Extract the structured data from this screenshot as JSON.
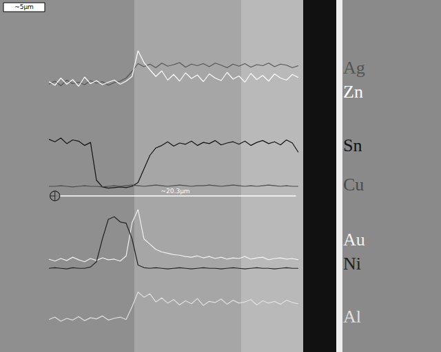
{
  "chart_data": {
    "type": "line",
    "annotations": {
      "scale_bar": "~5µm",
      "measurement": {
        "label": "~20.3µm",
        "length": 20.3
      }
    },
    "x": [
      -0.5,
      0,
      0.5,
      1,
      1.5,
      2,
      2.5,
      3,
      3.5,
      4,
      4.5,
      5,
      5.5,
      6,
      6.5,
      7,
      7.5,
      8,
      8.5,
      9,
      9.5,
      10,
      10.5,
      11,
      11.5,
      12,
      12.5,
      13,
      13.5,
      14,
      14.5,
      15,
      15.5,
      16,
      16.5,
      17,
      17.5,
      18,
      18.5,
      19,
      19.5,
      20,
      20.5
    ],
    "xlim": [
      -1.2,
      21.2
    ],
    "ylim": [
      0,
      10
    ],
    "tick_labels": false,
    "grid": false,
    "series": [
      {
        "name": "Ag",
        "color": "#555555",
        "values": [
          3.0,
          3.6,
          2.7,
          3.8,
          3.1,
          3.4,
          2.9,
          3.7,
          3.2,
          3.5,
          2.8,
          3.3,
          3.6,
          4.2,
          5.5,
          7.0,
          6.4,
          6.9,
          6.2,
          7.1,
          6.5,
          6.8,
          7.2,
          6.3,
          6.9,
          6.6,
          7.0,
          6.4,
          7.1,
          6.7,
          6.2,
          6.9,
          6.5,
          7.0,
          6.3,
          6.8,
          6.6,
          7.1,
          6.4,
          6.9,
          6.7,
          6.2,
          6.6
        ]
      },
      {
        "name": "Zn",
        "color": "#ffffff",
        "values": [
          3.5,
          2.8,
          4.2,
          3.0,
          3.9,
          2.6,
          4.4,
          3.1,
          3.7,
          2.9,
          3.4,
          3.8,
          3.0,
          3.6,
          4.5,
          9.5,
          7.2,
          5.8,
          4.5,
          5.6,
          3.8,
          4.9,
          3.6,
          5.2,
          4.1,
          4.8,
          3.5,
          5.0,
          4.2,
          3.7,
          5.3,
          4.0,
          4.6,
          3.4,
          5.1,
          3.9,
          4.7,
          3.6,
          5.0,
          4.2,
          3.8,
          4.9,
          4.3
        ]
      },
      {
        "name": "Sn",
        "color": "#111111",
        "values": [
          8.6,
          8.2,
          8.8,
          7.9,
          8.5,
          8.3,
          7.6,
          8.1,
          2.0,
          0.9,
          0.7,
          0.8,
          0.9,
          0.8,
          1.0,
          1.6,
          3.8,
          6.0,
          7.2,
          7.6,
          8.2,
          7.5,
          8.0,
          7.8,
          8.3,
          7.6,
          8.1,
          7.9,
          8.4,
          7.7,
          8.0,
          8.2,
          7.8,
          8.3,
          7.6,
          8.1,
          8.4,
          7.9,
          8.2,
          7.7,
          8.5,
          8.0,
          6.5
        ]
      },
      {
        "name": "Cu",
        "color": "#4a4a4a",
        "values": [
          1.0,
          1.0,
          1.1,
          1.0,
          0.9,
          1.0,
          1.1,
          1.0,
          1.0,
          0.9,
          1.0,
          1.1,
          1.0,
          1.1,
          1.2,
          1.1,
          1.0,
          1.1,
          1.2,
          1.1,
          1.0,
          1.1,
          1.2,
          1.1,
          1.0,
          1.1,
          1.1,
          1.2,
          1.1,
          1.0,
          1.1,
          1.2,
          1.1,
          1.0,
          1.1,
          1.0,
          1.1,
          1.2,
          1.1,
          1.0,
          1.1,
          1.0,
          1.0
        ]
      },
      {
        "name": "Au",
        "color": "#f2f2f2",
        "values": [
          1.9,
          1.6,
          2.0,
          1.7,
          2.2,
          1.8,
          1.5,
          2.0,
          1.7,
          2.1,
          1.8,
          1.9,
          1.6,
          2.4,
          7.5,
          9.5,
          5.0,
          4.2,
          3.4,
          3.0,
          2.8,
          2.6,
          2.5,
          2.3,
          2.2,
          2.4,
          2.1,
          2.3,
          2.0,
          2.2,
          1.9,
          2.1,
          2.0,
          2.3,
          1.9,
          2.1,
          2.2,
          1.8,
          2.0,
          2.1,
          1.9,
          2.0,
          1.8
        ]
      },
      {
        "name": "Ni",
        "color": "#222222",
        "values": [
          0.5,
          0.6,
          0.5,
          0.4,
          0.6,
          0.5,
          0.5,
          0.7,
          1.5,
          5.0,
          8.0,
          8.4,
          7.6,
          7.4,
          5.0,
          1.0,
          0.6,
          0.5,
          0.6,
          0.5,
          0.4,
          0.5,
          0.6,
          0.5,
          0.4,
          0.5,
          0.6,
          0.5,
          0.5,
          0.4,
          0.5,
          0.6,
          0.5,
          0.4,
          0.5,
          0.6,
          0.5,
          0.5,
          0.4,
          0.5,
          0.6,
          0.5,
          0.5
        ]
      },
      {
        "name": "Al",
        "color": "#e0e0e0",
        "values": [
          1.8,
          2.2,
          1.5,
          2.0,
          1.7,
          2.3,
          1.6,
          2.1,
          1.9,
          2.4,
          1.7,
          2.0,
          2.2,
          1.8,
          4.0,
          6.5,
          5.6,
          6.2,
          4.8,
          5.5,
          4.6,
          5.2,
          4.3,
          5.0,
          4.5,
          5.4,
          4.2,
          4.9,
          4.7,
          5.3,
          4.4,
          5.1,
          4.6,
          4.8,
          5.2,
          4.3,
          5.0,
          4.6,
          4.9,
          4.4,
          5.1,
          4.7,
          4.5
        ]
      }
    ]
  }
}
